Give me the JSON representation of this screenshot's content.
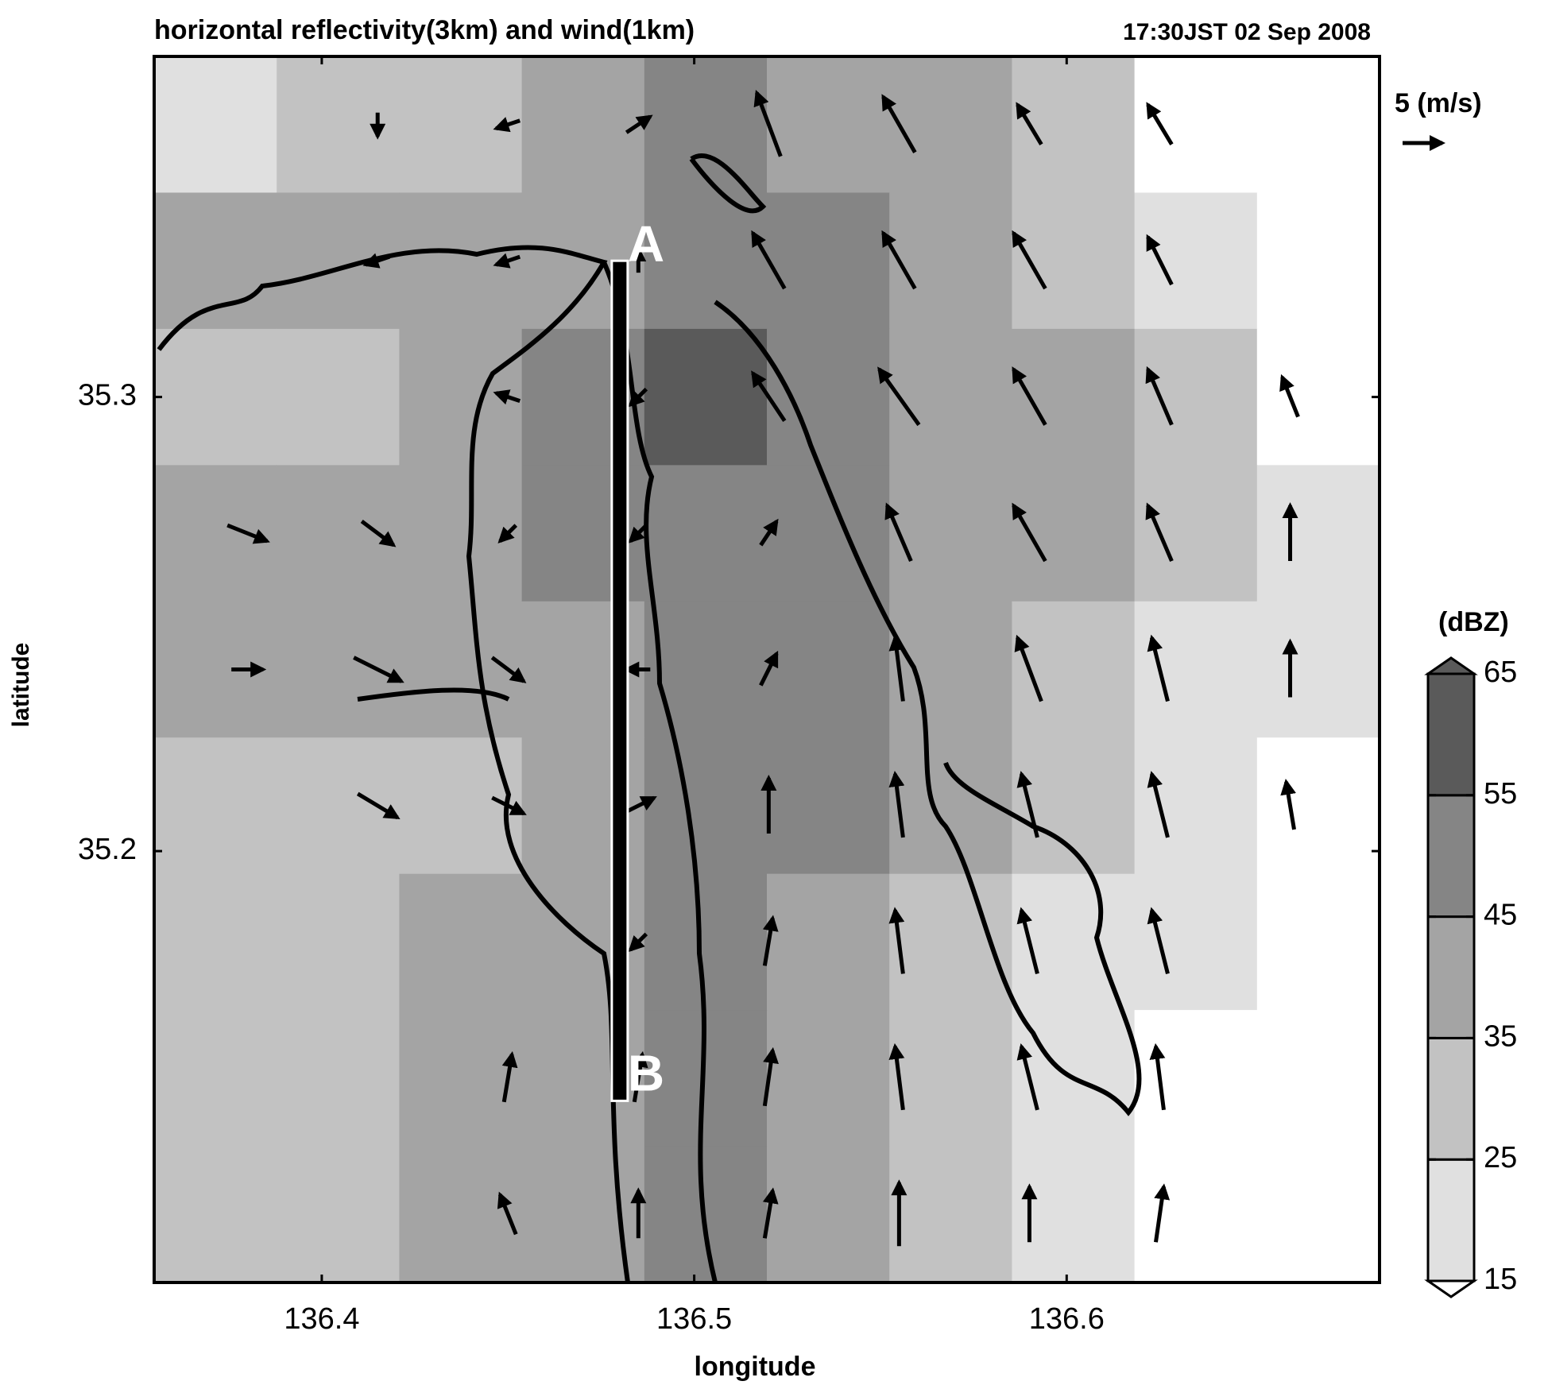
{
  "chart_data": {
    "type": "quiver",
    "title": "horizontal reflectivity(3km) and wind(1km)",
    "subtitle": "17:30JST 02 Sep 2008",
    "x_label": "longitude",
    "y_label": "latitude",
    "xlim": [
      136.355,
      136.684
    ],
    "ylim": [
      35.105,
      35.375
    ],
    "xticks": [
      136.4,
      136.5,
      136.6
    ],
    "yticks": [
      35.2,
      35.3
    ],
    "colorbar_label": "(dBZ)",
    "levels": [
      15,
      25,
      35,
      45,
      55,
      65
    ],
    "colors": [
      "#e0e0e0",
      "#c2c2c2",
      "#a4a4a4",
      "#858585",
      "#5a5a5a"
    ],
    "reflectivity": {
      "z": [
        [
          20,
          30,
          30,
          40,
          45,
          40,
          35,
          25,
          10,
          10
        ],
        [
          35,
          40,
          40,
          40,
          45,
          45,
          40,
          30,
          15,
          10
        ],
        [
          30,
          25,
          40,
          45,
          55,
          50,
          40,
          40,
          25,
          10
        ],
        [
          35,
          40,
          40,
          45,
          50,
          50,
          40,
          35,
          25,
          20
        ],
        [
          35,
          35,
          40,
          40,
          45,
          45,
          35,
          25,
          20,
          20
        ],
        [
          30,
          25,
          30,
          40,
          50,
          45,
          35,
          25,
          20,
          10
        ],
        [
          25,
          25,
          35,
          40,
          45,
          40,
          30,
          20,
          20,
          10
        ],
        [
          25,
          30,
          35,
          40,
          45,
          40,
          25,
          20,
          10,
          10
        ],
        [
          30,
          25,
          35,
          40,
          45,
          35,
          25,
          20,
          10,
          10
        ]
      ]
    },
    "wind": {
      "lon": [
        136.38,
        136.415,
        136.45,
        136.485,
        136.52,
        136.555,
        136.59,
        136.625,
        136.66
      ],
      "lat": [
        35.36,
        35.33,
        35.3,
        35.27,
        35.24,
        35.21,
        35.18,
        35.15,
        35.12
      ],
      "u": [
        [
          null,
          0,
          -3,
          3,
          -3,
          -4,
          -3,
          -3,
          null
        ],
        [
          null,
          -3,
          -3,
          0,
          -4,
          -4,
          -4,
          -3,
          null
        ],
        [
          null,
          null,
          -3,
          -2,
          -4,
          -5,
          -4,
          -3,
          -2
        ],
        [
          5,
          4,
          -2,
          -2,
          2,
          -3,
          -4,
          -3,
          0
        ],
        [
          4,
          6,
          4,
          -3,
          2,
          -1,
          -3,
          -2,
          0
        ],
        [
          null,
          5,
          4,
          4,
          0,
          -1,
          -2,
          -2,
          -1
        ],
        [
          null,
          null,
          null,
          -2,
          1,
          -1,
          -2,
          -2,
          null
        ],
        [
          null,
          null,
          1,
          1,
          1,
          -1,
          -2,
          -1,
          null
        ],
        [
          null,
          null,
          -2,
          0,
          1,
          0,
          0,
          1,
          null
        ]
      ],
      "v": [
        [
          null,
          -3,
          -1,
          2,
          8,
          7,
          5,
          5,
          null
        ],
        [
          null,
          -1,
          -1,
          3,
          7,
          7,
          7,
          6,
          null
        ],
        [
          null,
          null,
          1,
          -2,
          6,
          7,
          7,
          7,
          5
        ],
        [
          -2,
          -3,
          -2,
          -2,
          3,
          7,
          7,
          7,
          7
        ],
        [
          0,
          -3,
          -3,
          0,
          4,
          8,
          8,
          8,
          7
        ],
        [
          null,
          -3,
          -2,
          2,
          7,
          8,
          8,
          8,
          6
        ],
        [
          null,
          null,
          null,
          -2,
          6,
          8,
          8,
          8,
          null
        ],
        [
          null,
          null,
          6,
          6,
          7,
          8,
          8,
          8,
          null
        ],
        [
          null,
          null,
          5,
          6,
          6,
          8,
          7,
          7,
          null
        ]
      ]
    },
    "reference_vector": 5,
    "reference_label": "5 (m/s)",
    "transect": {
      "lon": 136.48,
      "lat": [
        35.33,
        35.145
      ],
      "labels": [
        "A",
        "B"
      ]
    }
  }
}
